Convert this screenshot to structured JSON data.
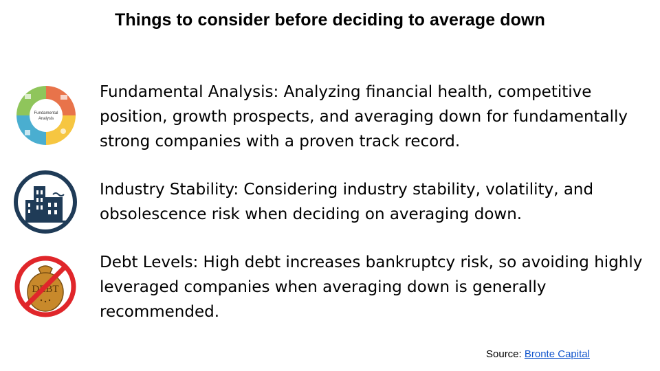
{
  "title": "Things to consider before deciding to average down",
  "points": [
    {
      "icon": "fundamental-analysis-wheel-icon",
      "icon_label_line1": "Fundamental",
      "icon_label_line2": "Analysis",
      "text": "Fundamental Analysis: Analyzing financial health, competitive position, growth prospects, and averaging down for fundamentally strong companies with a proven track record."
    },
    {
      "icon": "buildings-icon",
      "text": "Industry Stability: Considering industry stability, volatility, and obsolescence risk when deciding on averaging down."
    },
    {
      "icon": "no-debt-icon",
      "icon_label": "DEBT",
      "text": "Debt Levels: High debt increases bankruptcy risk, so avoiding highly leveraged companies when averaging down is generally recommended."
    }
  ],
  "source": {
    "label": "Source: ",
    "link_text": "Bronte Capital"
  },
  "colors": {
    "link": "#1155cc",
    "navy": "#1f3b57",
    "red": "#e0262a",
    "bag": "#c8892b"
  }
}
